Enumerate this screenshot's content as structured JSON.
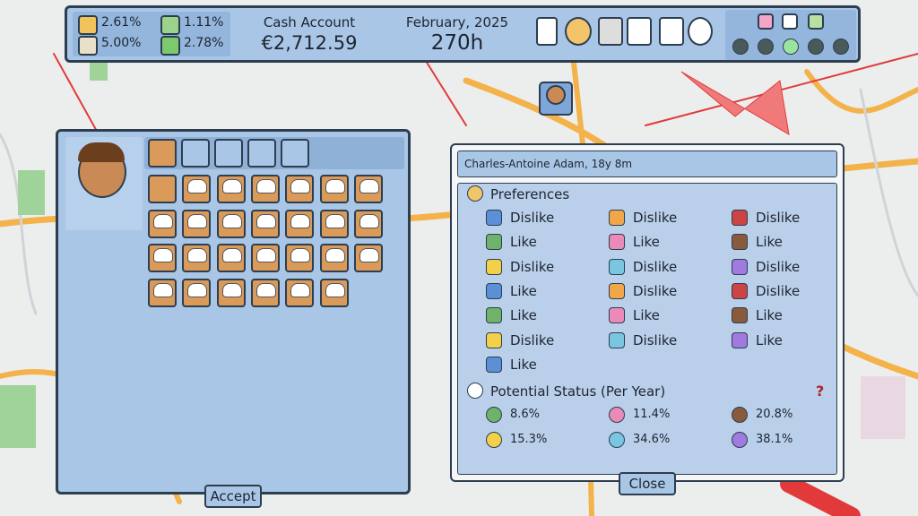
{
  "top_bar": {
    "stats": [
      "2.61%",
      "1.11%",
      "5.00%",
      "2.78%"
    ],
    "cash_label": "Cash Account",
    "cash_value": "€2,712.59",
    "date": "February, 2025",
    "hours": "270h"
  },
  "editor": {
    "accept": "Accept"
  },
  "profile": {
    "name": "Charles-Antoine Adam, 18y 8m",
    "preferences_title": "Preferences",
    "preferences": [
      "Dislike",
      "Dislike",
      "Dislike",
      "Like",
      "Like",
      "Like",
      "Dislike",
      "Dislike",
      "Dislike",
      "Like",
      "Dislike",
      "Dislike",
      "Like",
      "Like",
      "Like",
      "Dislike",
      "Dislike",
      "Like",
      "Like"
    ],
    "status_title": "Potential Status (Per Year)",
    "help": "?",
    "status": [
      "8.6%",
      "11.4%",
      "20.8%",
      "15.3%",
      "34.6%",
      "38.1%"
    ],
    "close": "Close"
  }
}
